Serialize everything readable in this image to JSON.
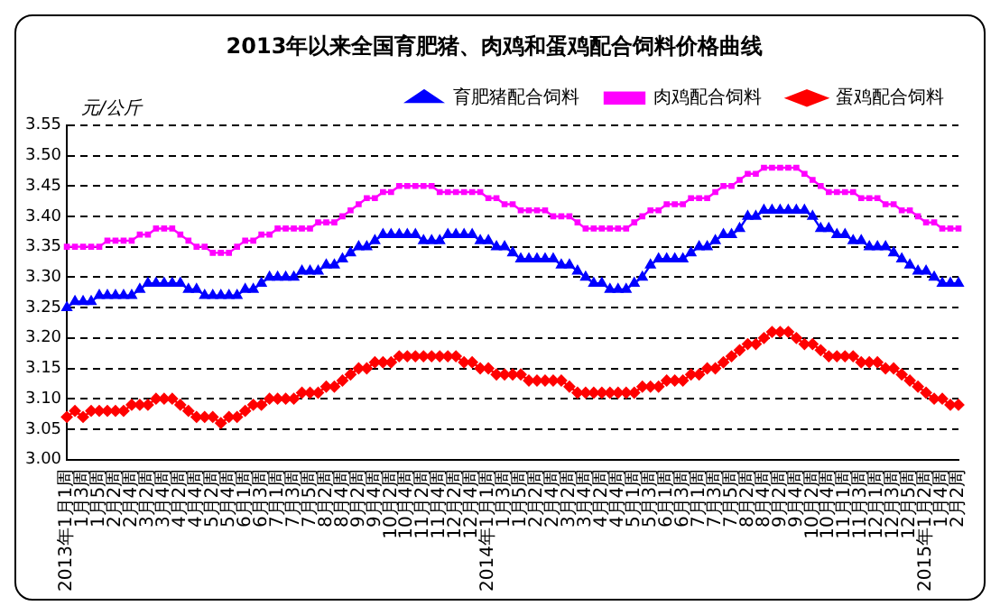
{
  "chart_data": {
    "type": "line",
    "title": "2013年以来全国育肥猪、肉鸡和蛋鸡配合饲料价格曲线",
    "ylabel": "元/公斤",
    "categories": [
      "2013年1月1周",
      null,
      "1月3周",
      null,
      "1月5周",
      null,
      "2月2周",
      null,
      "2月4周",
      null,
      "3月2周",
      null,
      "3月4周",
      null,
      "4月2周",
      null,
      "4月4周",
      null,
      "5月2周",
      null,
      "5月4周",
      null,
      "6月1周",
      null,
      "6月3周",
      null,
      "7月1周",
      null,
      "7月3周",
      null,
      "7月5周",
      null,
      "8月2周",
      null,
      "8月4周",
      null,
      "9月2周",
      null,
      "9月4周",
      null,
      "10月2周",
      null,
      "10月4周",
      null,
      "11月2周",
      null,
      "11月4周",
      null,
      "12月2周",
      null,
      "12月4周",
      null,
      "2014年1月1周",
      null,
      "1月3周",
      null,
      "1月5周",
      null,
      "2月2周",
      null,
      "2月4周",
      null,
      "3月2周",
      null,
      "3月4周",
      null,
      "4月2周",
      null,
      "4月4周",
      null,
      "5月1周",
      null,
      "5月3周",
      null,
      "6月1周",
      null,
      "6月3周",
      null,
      "7月1周",
      null,
      "7月3周",
      null,
      "7月5周",
      null,
      "8月2周",
      null,
      "8月4周",
      null,
      "9月2周",
      null,
      "9月4周",
      null,
      "10月2周",
      null,
      "10月4周",
      null,
      "11月1周",
      null,
      "11月3周",
      null,
      "12月1周",
      null,
      "12月3周",
      null,
      "12月5周",
      null,
      "2015年1月2周",
      null,
      "1月4周",
      null,
      "2月2周"
    ],
    "series": [
      {
        "name": "育肥猪配合饲料",
        "color": "#0000ff",
        "marker": "triangle",
        "values": [
          3.25,
          3.26,
          3.26,
          3.26,
          3.27,
          3.27,
          3.27,
          3.27,
          3.27,
          3.28,
          3.29,
          3.29,
          3.29,
          3.29,
          3.29,
          3.28,
          3.28,
          3.27,
          3.27,
          3.27,
          3.27,
          3.27,
          3.28,
          3.28,
          3.29,
          3.3,
          3.3,
          3.3,
          3.3,
          3.31,
          3.31,
          3.31,
          3.32,
          3.32,
          3.33,
          3.34,
          3.35,
          3.35,
          3.36,
          3.37,
          3.37,
          3.37,
          3.37,
          3.37,
          3.36,
          3.36,
          3.36,
          3.37,
          3.37,
          3.37,
          3.37,
          3.36,
          3.36,
          3.35,
          3.35,
          3.34,
          3.33,
          3.33,
          3.33,
          3.33,
          3.33,
          3.32,
          3.32,
          3.31,
          3.3,
          3.29,
          3.29,
          3.28,
          3.28,
          3.28,
          3.29,
          3.3,
          3.32,
          3.33,
          3.33,
          3.33,
          3.33,
          3.34,
          3.35,
          3.35,
          3.36,
          3.37,
          3.37,
          3.38,
          3.4,
          3.4,
          3.41,
          3.41,
          3.41,
          3.41,
          3.41,
          3.41,
          3.4,
          3.38,
          3.38,
          3.37,
          3.37,
          3.36,
          3.36,
          3.35,
          3.35,
          3.35,
          3.34,
          3.33,
          3.32,
          3.31,
          3.31,
          3.3,
          3.29,
          3.29,
          3.29
        ]
      },
      {
        "name": "肉鸡配合饲料",
        "color": "#ff00ff",
        "marker": "square",
        "values": [
          3.35,
          3.35,
          3.35,
          3.35,
          3.35,
          3.36,
          3.36,
          3.36,
          3.36,
          3.37,
          3.37,
          3.38,
          3.38,
          3.38,
          3.37,
          3.36,
          3.35,
          3.35,
          3.34,
          3.34,
          3.34,
          3.35,
          3.36,
          3.36,
          3.37,
          3.37,
          3.38,
          3.38,
          3.38,
          3.38,
          3.38,
          3.39,
          3.39,
          3.39,
          3.4,
          3.41,
          3.42,
          3.43,
          3.43,
          3.44,
          3.44,
          3.45,
          3.45,
          3.45,
          3.45,
          3.45,
          3.44,
          3.44,
          3.44,
          3.44,
          3.44,
          3.44,
          3.43,
          3.43,
          3.42,
          3.42,
          3.41,
          3.41,
          3.41,
          3.41,
          3.4,
          3.4,
          3.4,
          3.39,
          3.38,
          3.38,
          3.38,
          3.38,
          3.38,
          3.38,
          3.39,
          3.4,
          3.41,
          3.41,
          3.42,
          3.42,
          3.42,
          3.43,
          3.43,
          3.43,
          3.44,
          3.45,
          3.45,
          3.46,
          3.47,
          3.47,
          3.48,
          3.48,
          3.48,
          3.48,
          3.48,
          3.47,
          3.46,
          3.45,
          3.44,
          3.44,
          3.44,
          3.44,
          3.43,
          3.43,
          3.43,
          3.42,
          3.42,
          3.41,
          3.41,
          3.4,
          3.39,
          3.39,
          3.38,
          3.38,
          3.38
        ]
      },
      {
        "name": "蛋鸡配合饲料",
        "color": "#ff0000",
        "marker": "diamond",
        "values": [
          3.07,
          3.08,
          3.07,
          3.08,
          3.08,
          3.08,
          3.08,
          3.08,
          3.09,
          3.09,
          3.09,
          3.1,
          3.1,
          3.1,
          3.09,
          3.08,
          3.07,
          3.07,
          3.07,
          3.06,
          3.07,
          3.07,
          3.08,
          3.09,
          3.09,
          3.1,
          3.1,
          3.1,
          3.1,
          3.11,
          3.11,
          3.11,
          3.12,
          3.12,
          3.13,
          3.14,
          3.15,
          3.15,
          3.16,
          3.16,
          3.16,
          3.17,
          3.17,
          3.17,
          3.17,
          3.17,
          3.17,
          3.17,
          3.17,
          3.16,
          3.16,
          3.15,
          3.15,
          3.14,
          3.14,
          3.14,
          3.14,
          3.13,
          3.13,
          3.13,
          3.13,
          3.13,
          3.12,
          3.11,
          3.11,
          3.11,
          3.11,
          3.11,
          3.11,
          3.11,
          3.11,
          3.12,
          3.12,
          3.12,
          3.13,
          3.13,
          3.13,
          3.14,
          3.14,
          3.15,
          3.15,
          3.16,
          3.17,
          3.18,
          3.19,
          3.19,
          3.2,
          3.21,
          3.21,
          3.21,
          3.2,
          3.19,
          3.19,
          3.18,
          3.17,
          3.17,
          3.17,
          3.17,
          3.16,
          3.16,
          3.16,
          3.15,
          3.15,
          3.14,
          3.13,
          3.12,
          3.11,
          3.1,
          3.1,
          3.09,
          3.09
        ]
      }
    ],
    "ylim": [
      3.0,
      3.55
    ],
    "yticks": [
      {
        "value": 3.0,
        "label": "3.00"
      },
      {
        "value": 3.05,
        "label": "3.05"
      },
      {
        "value": 3.1,
        "label": "3.10"
      },
      {
        "value": 3.15,
        "label": "3.15"
      },
      {
        "value": 3.2,
        "label": "3.20"
      },
      {
        "value": 3.25,
        "label": "3.25"
      },
      {
        "value": 3.3,
        "label": "3.30"
      },
      {
        "value": 3.35,
        "label": "3.35"
      },
      {
        "value": 3.4,
        "label": "3.40"
      },
      {
        "value": 3.45,
        "label": "3.45"
      },
      {
        "value": 3.5,
        "label": "3.50"
      },
      {
        "value": 3.55,
        "label": "3.55"
      }
    ],
    "grid": "y",
    "legend": "top right",
    "line_style": "solid"
  }
}
